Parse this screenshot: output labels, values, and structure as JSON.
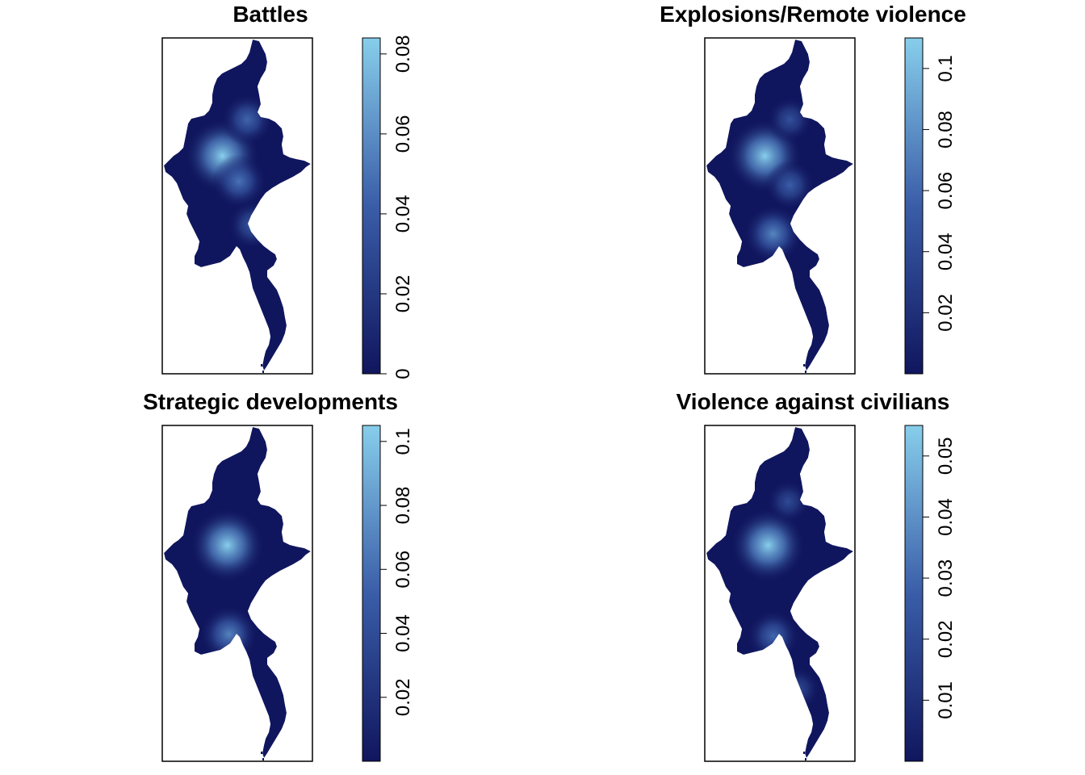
{
  "panels": [
    {
      "title": "Battles",
      "colorbar": {
        "min": 0,
        "max": 0.084,
        "ticks": [
          "0",
          "0.02",
          "0.04",
          "0.06",
          "0.08"
        ],
        "tick_values": [
          0,
          0.02,
          0.04,
          0.06,
          0.08
        ]
      },
      "hotspots": [
        {
          "lon": 95.8,
          "lat": 22.0,
          "value": 0.084
        },
        {
          "lon": 96.8,
          "lat": 20.6,
          "value": 0.05
        },
        {
          "lon": 97.3,
          "lat": 24.0,
          "value": 0.045
        },
        {
          "lon": 97.6,
          "lat": 18.2,
          "value": 0.04
        }
      ]
    },
    {
      "title": "Explosions/Remote violence",
      "colorbar": {
        "min": 0,
        "max": 0.11,
        "ticks": [
          "0.02",
          "0.04",
          "0.06",
          "0.08",
          "0.1"
        ],
        "tick_values": [
          0.02,
          0.04,
          0.06,
          0.08,
          0.1
        ]
      },
      "hotspots": [
        {
          "lon": 95.8,
          "lat": 22.0,
          "value": 0.11
        },
        {
          "lon": 96.3,
          "lat": 17.7,
          "value": 0.075
        },
        {
          "lon": 97.3,
          "lat": 20.4,
          "value": 0.055
        },
        {
          "lon": 97.3,
          "lat": 24.0,
          "value": 0.045
        }
      ]
    },
    {
      "title": "Strategic developments",
      "colorbar": {
        "min": 0,
        "max": 0.105,
        "ticks": [
          "0.02",
          "0.04",
          "0.06",
          "0.08",
          "0.1"
        ],
        "tick_values": [
          0.02,
          0.04,
          0.06,
          0.08,
          0.1
        ]
      },
      "hotspots": [
        {
          "lon": 96.1,
          "lat": 21.9,
          "value": 0.105
        },
        {
          "lon": 96.2,
          "lat": 17.0,
          "value": 0.07
        }
      ]
    },
    {
      "title": "Violence against civilians",
      "colorbar": {
        "min": 0,
        "max": 0.055,
        "ticks": [
          "0.01",
          "0.02",
          "0.03",
          "0.04",
          "0.05"
        ],
        "tick_values": [
          0.01,
          0.02,
          0.03,
          0.04,
          0.05
        ]
      },
      "hotspots": [
        {
          "lon": 96.0,
          "lat": 21.9,
          "value": 0.055
        },
        {
          "lon": 96.3,
          "lat": 16.9,
          "value": 0.03
        },
        {
          "lon": 97.2,
          "lat": 24.3,
          "value": 0.02
        },
        {
          "lon": 97.8,
          "lat": 14.0,
          "value": 0.02
        }
      ]
    }
  ],
  "colors": {
    "low": "#10165e",
    "mid": "#3a5da8",
    "high": "#87ceeb",
    "frame": "#000000"
  }
}
